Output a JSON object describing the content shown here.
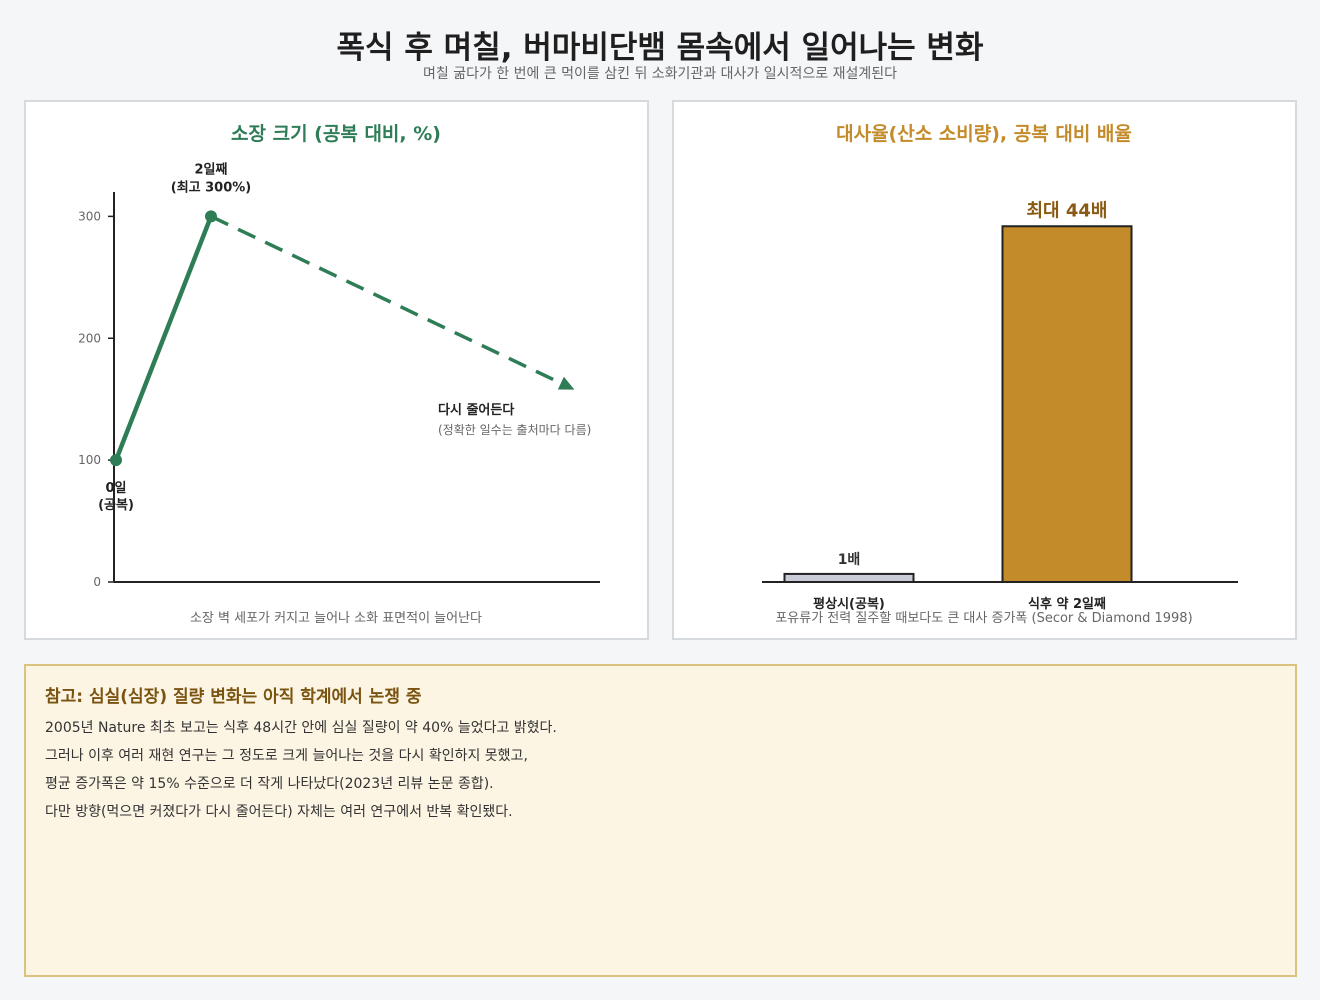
{
  "title": "폭식 후 며칠, 버마비단뱀 몸속에서 일어나는 변화",
  "subtitle": "며칠 굶다가 한 번에 큰 먹이를 삼킨 뒤 소화기관과 대사가 일시적으로 재설계된다",
  "colors": {
    "green": "#2e7d57",
    "gold": "#c48b2b",
    "grey_bar": "#c9ccd6",
    "note_bg": "#fdf5e4",
    "note_title": "#7a5310"
  },
  "chart_data": [
    {
      "type": "line",
      "title": "소장 크기 (공복 대비, %)",
      "ylim": [
        0,
        320
      ],
      "yticks": [
        0,
        100,
        200,
        300
      ],
      "grid": false,
      "points": [
        {
          "x": 0,
          "y": 100,
          "label": "0일",
          "label2": "(공복)"
        },
        {
          "x": 2,
          "y": 300,
          "label": "2일째",
          "label2": "(최고 300%)"
        }
      ],
      "trend": {
        "y": 160,
        "style": "dashed-arrow",
        "label": "다시 줄어든다",
        "sublabel": "(정확한 일수는 출처마다 다름)"
      },
      "caption": "소장 벽 세포가 커지고 늘어나 소화 표면적이 늘어난다"
    },
    {
      "type": "bar",
      "title": "대사율(산소 소비량), 공복 대비 배율",
      "categories": [
        "평상시(공복)",
        "식후 약 2일째"
      ],
      "values": [
        1,
        44
      ],
      "ylim": [
        0,
        47
      ],
      "data_labels": [
        "1배",
        "최대 44배"
      ],
      "caption": "포유류가 전력 질주할 때보다도 큰 대사 증가폭 (Secor & Diamond 1998)"
    }
  ],
  "note": {
    "title": "참고: 심실(심장) 질량 변화는 아직 학계에서 논쟁 중",
    "lines": [
      "2005년 Nature 최초 보고는 식후 48시간 안에 심실 질량이 약 40% 늘었다고 밝혔다.",
      "그러나 이후 여러 재현 연구는 그 정도로 크게 늘어나는 것을 다시 확인하지 못했고,",
      "평균 증가폭은 약 15% 수준으로 더 작게 나타났다(2023년 리뷰 논문 종합).",
      "다만 방향(먹으면 커졌다가 다시 줄어든다) 자체는 여러 연구에서 반복 확인됐다."
    ]
  }
}
